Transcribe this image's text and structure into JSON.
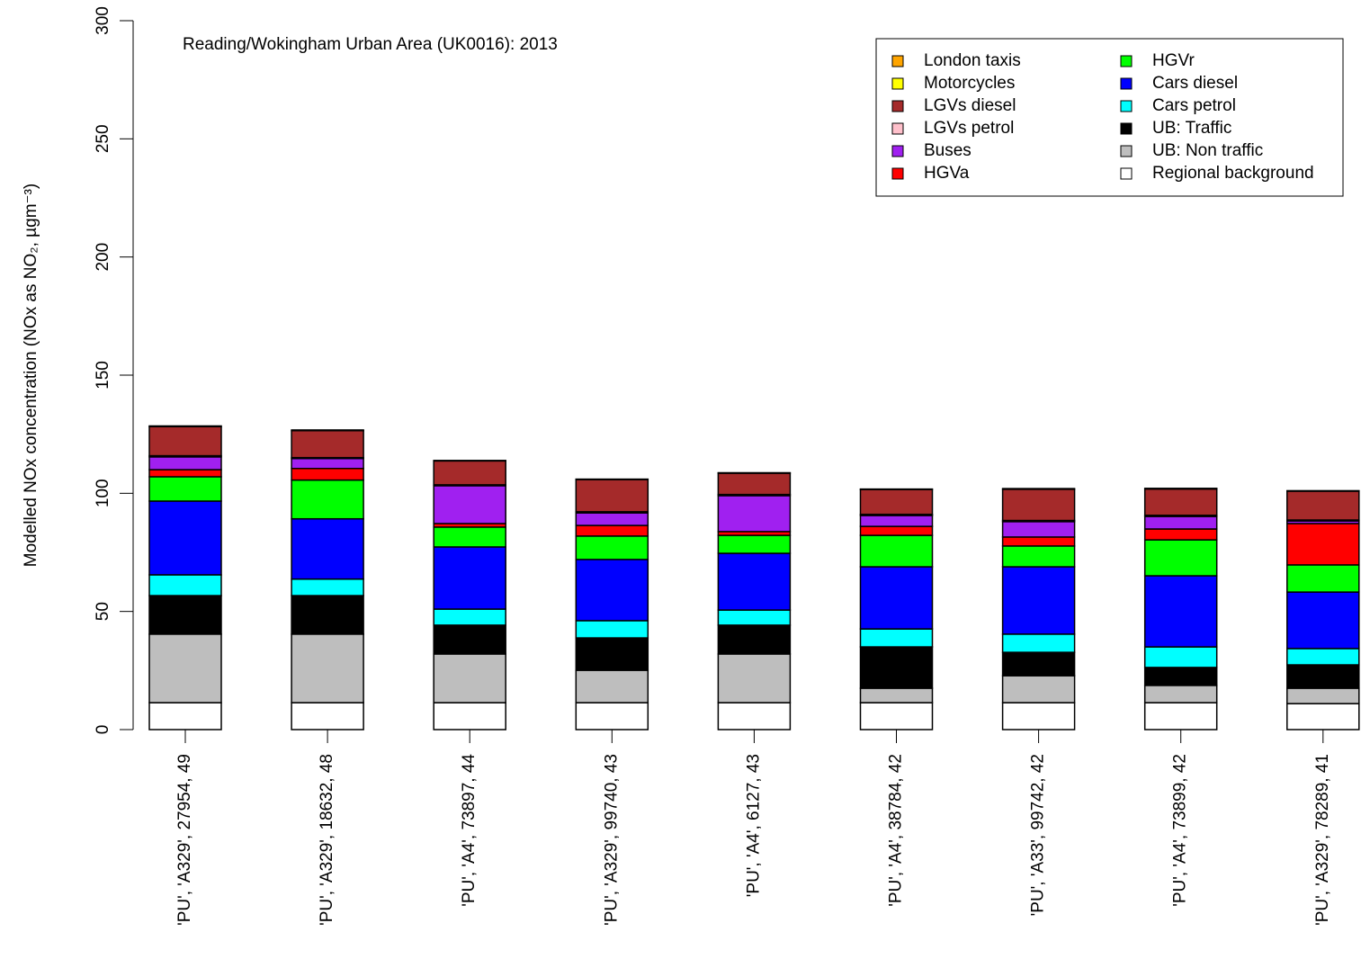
{
  "chart_data": {
    "type": "stacked_bar",
    "annotation": "Reading/Wokingham Urban Area (UK0016): 2013",
    "ylabel": "Modelled NOx concentration (NOx as NO₂, µgm⁻³)",
    "categories": [
      "'PU', 'A329', 27954, 49",
      "'PU', 'A329', 18632, 48",
      "'PU', 'A4', 73897, 44",
      "'PU', 'A329', 99740, 43",
      "'PU', 'A4', 6127, 43",
      "'PU', 'A4', 38784, 42",
      "'PU', 'A33', 99742, 42",
      "'PU', 'A4', 73899, 42",
      "'PU', 'A329', 78289, 41"
    ],
    "series": [
      {
        "name": "London taxis",
        "color": "#FFA500",
        "values": [
          0,
          0,
          0,
          0,
          0,
          0,
          0,
          0,
          0
        ]
      },
      {
        "name": "Motorcycles",
        "color": "#FFFF00",
        "values": [
          0.3,
          0.3,
          0.2,
          0.2,
          0.2,
          0.2,
          0.3,
          0.3,
          0.2
        ]
      },
      {
        "name": "LGVs diesel",
        "color": "#A52A2A",
        "values": [
          12.3,
          11.4,
          10.1,
          13.6,
          9.0,
          10.5,
          13.2,
          11.1,
          12.2
        ]
      },
      {
        "name": "LGVs petrol",
        "color": "#FFC0CB",
        "values": [
          0.5,
          0.4,
          0.4,
          0.5,
          0.5,
          0.5,
          0.5,
          0.5,
          0.4
        ]
      },
      {
        "name": "Buses",
        "color": "#A020F0",
        "values": [
          5.4,
          4.2,
          16.0,
          5.3,
          15.2,
          4.6,
          6.5,
          5.3,
          1.1
        ]
      },
      {
        "name": "HGVa",
        "color": "#FF0000",
        "values": [
          3.0,
          4.9,
          1.5,
          4.5,
          1.6,
          3.8,
          3.8,
          4.6,
          17.5
        ]
      },
      {
        "name": "HGVr",
        "color": "#00FF00",
        "values": [
          10.3,
          16.4,
          8.4,
          9.9,
          7.6,
          13.3,
          8.8,
          15.2,
          11.5
        ]
      },
      {
        "name": "Cars diesel",
        "color": "#0000FF",
        "values": [
          31.2,
          25.5,
          26.3,
          25.9,
          24.0,
          26.3,
          28.5,
          30.1,
          23.9
        ]
      },
      {
        "name": "Cars petrol",
        "color": "#00FFFF",
        "values": [
          8.8,
          7.0,
          6.8,
          7.3,
          6.4,
          7.6,
          7.7,
          8.7,
          6.9
        ]
      },
      {
        "name": "UB: Traffic",
        "color": "#000000",
        "values": [
          16.3,
          16.3,
          12.2,
          13.7,
          12.2,
          17.5,
          9.9,
          7.6,
          9.9
        ]
      },
      {
        "name": "UB: Non traffic",
        "color": "#BEBEBE",
        "values": [
          29.0,
          29.0,
          20.6,
          13.7,
          20.6,
          6.1,
          11.4,
          7.3,
          6.5
        ]
      },
      {
        "name": "Regional background",
        "color": "#FFFFFF",
        "values": [
          11.4,
          11.4,
          11.4,
          11.4,
          11.4,
          11.4,
          11.4,
          11.4,
          11.0
        ]
      }
    ],
    "ylim": [
      0,
      300
    ],
    "yticks": [
      0,
      50,
      100,
      150,
      200,
      250,
      300
    ],
    "legend": "top-right"
  }
}
